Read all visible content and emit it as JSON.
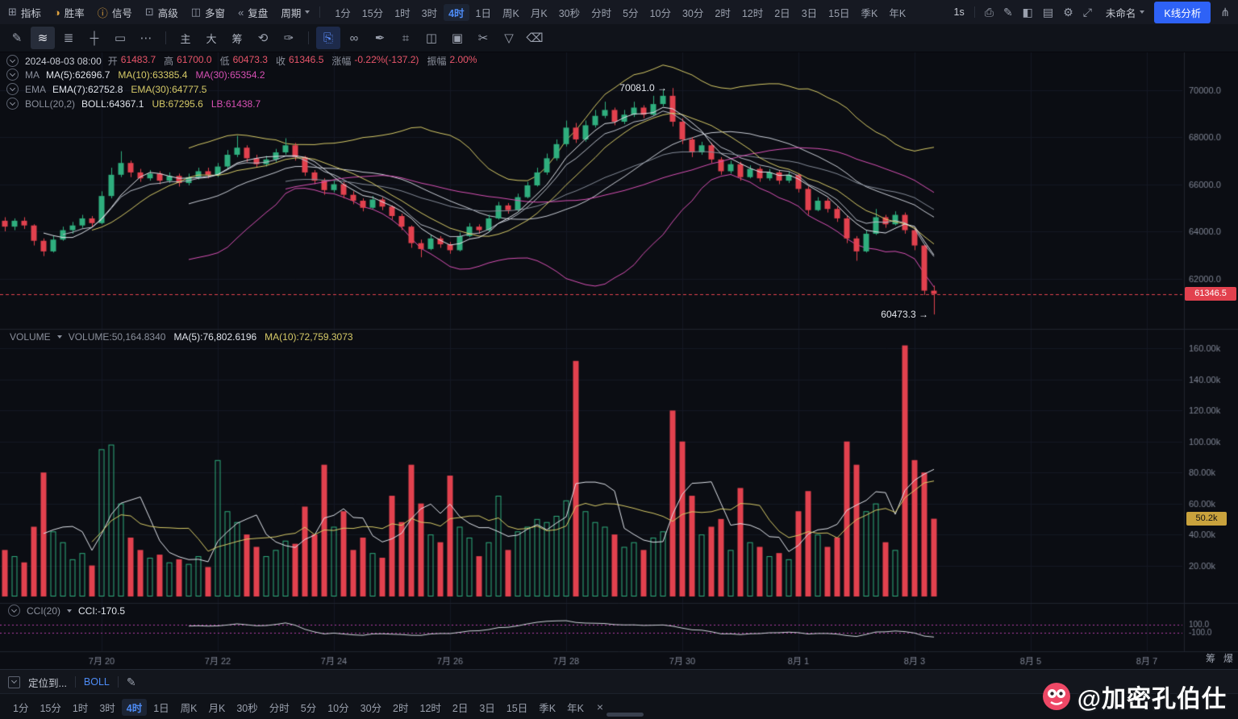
{
  "topbar": {
    "tools": [
      {
        "name": "indicators",
        "icon": "⊞",
        "label": "指标",
        "icon_color": "#8f95a3"
      },
      {
        "name": "win-rate",
        "icon": "◑",
        "label": "胜率",
        "icon_color": "#dfa23f"
      },
      {
        "name": "signal",
        "icon": "ⓘ",
        "label": "信号",
        "icon_color": "#dfa23f"
      },
      {
        "name": "advanced",
        "icon": "⊡",
        "label": "高级",
        "icon_color": "#8f95a3"
      },
      {
        "name": "multi-window",
        "icon": "◫",
        "label": "多窗",
        "icon_color": "#8f95a3"
      },
      {
        "name": "replay",
        "icon": "«",
        "label": "复盘",
        "icon_color": "#8f95a3"
      },
      {
        "name": "period",
        "icon": "",
        "label": "周期",
        "caret": true,
        "icon_color": ""
      }
    ],
    "timeframes": [
      "1分",
      "15分",
      "1时",
      "3时",
      "4时",
      "1日",
      "周K",
      "月K",
      "30秒",
      "分时",
      "5分",
      "10分",
      "30分",
      "2时",
      "12时",
      "2日",
      "3日",
      "15日",
      "季K",
      "年K"
    ],
    "active_timeframe": "4时",
    "right": {
      "interval": "1s",
      "icons": [
        {
          "name": "screenshot-camera-icon",
          "glyph": "⎙"
        },
        {
          "name": "edit-pencil-icon",
          "glyph": "✎"
        },
        {
          "name": "panel-layout-icon",
          "glyph": "◧"
        },
        {
          "name": "image-icon",
          "glyph": "▤"
        },
        {
          "name": "settings-gear-icon",
          "glyph": "⚙"
        },
        {
          "name": "fullscreen-icon",
          "glyph": "⤢"
        }
      ],
      "layout_name": "未命名",
      "kline_button": "K线分析",
      "share_glyph": "⋔"
    }
  },
  "drawbar": {
    "items": [
      {
        "name": "pencil-tool-icon",
        "glyph": "✎"
      },
      {
        "name": "trend-line-tool-icon",
        "glyph": "≋",
        "active": true
      },
      {
        "name": "line-tools-icon",
        "glyph": "≣"
      },
      {
        "name": "crosshair-tool-icon",
        "glyph": "┼"
      },
      {
        "name": "shape-tool-icon",
        "glyph": "▭"
      },
      {
        "name": "more-tools-icon",
        "glyph": "⋯"
      },
      {
        "sep": true
      },
      {
        "name": "main-chart-button",
        "glyph": "主",
        "text": true
      },
      {
        "name": "large-view-button",
        "glyph": "大",
        "text": true
      },
      {
        "name": "chips-button",
        "glyph": "筹",
        "text": true
      },
      {
        "name": "refresh-icon",
        "glyph": "⟲"
      },
      {
        "name": "brush-icon",
        "glyph": "✑"
      },
      {
        "sep": true
      },
      {
        "name": "copy-icon",
        "glyph": "⎘",
        "highlight": true
      },
      {
        "name": "link-icon",
        "glyph": "∞"
      },
      {
        "name": "pen-icon",
        "glyph": "✒"
      },
      {
        "name": "grid-tool-icon",
        "glyph": "⌗"
      },
      {
        "name": "export-icon",
        "glyph": "◫"
      },
      {
        "name": "note-icon",
        "glyph": "▣"
      },
      {
        "name": "scissors-icon",
        "glyph": "✂"
      },
      {
        "name": "filter-icon",
        "glyph": "▽"
      },
      {
        "name": "trash-icon",
        "glyph": "⌫"
      }
    ]
  },
  "legend": {
    "ohlc": {
      "time": "2024-08-03 08:00",
      "value_color": "#e8556a",
      "pairs": [
        {
          "label": "开",
          "value": "61483.7"
        },
        {
          "label": "高",
          "value": "61700.0"
        },
        {
          "label": "低",
          "value": "60473.3"
        },
        {
          "label": "收",
          "value": "61346.5"
        },
        {
          "label": "涨幅",
          "value": "-0.22%(-137.2)"
        },
        {
          "label": "振幅",
          "value": "2.00%"
        }
      ]
    },
    "ma": {
      "name": "MA",
      "items": [
        {
          "text": "MA(5):62696.7",
          "color": "#dfe3ea"
        },
        {
          "text": "MA(10):63385.4",
          "color": "#d6ca67"
        },
        {
          "text": "MA(30):65354.2",
          "color": "#d750b4"
        }
      ]
    },
    "ema": {
      "name": "EMA",
      "items": [
        {
          "text": "EMA(7):62752.8",
          "color": "#dfe3ea"
        },
        {
          "text": "EMA(30):64777.5",
          "color": "#d6ca67"
        }
      ]
    },
    "boll": {
      "name": "BOLL(20,2)",
      "items": [
        {
          "text": "BOLL:64367.1",
          "color": "#dfe3ea"
        },
        {
          "text": "UB:67295.6",
          "color": "#d6ca67"
        },
        {
          "text": "LB:61438.7",
          "color": "#d750b4"
        }
      ]
    },
    "volume": {
      "name": "VOLUME",
      "items": [
        {
          "text": "VOLUME:50,164.8340",
          "color": "#8a8f9b"
        },
        {
          "text": "MA(5):76,802.6196",
          "color": "#dfe3ea"
        },
        {
          "text": "MA(10):72,759.3073",
          "color": "#d6ca67"
        }
      ]
    },
    "cci": {
      "name": "CCI(20)",
      "items": [
        {
          "text": "CCI:-170.5",
          "color": "#dfe3ea"
        }
      ]
    }
  },
  "side_tabs": [
    "筹",
    "爆"
  ],
  "bottombar1": {
    "locate_label": "定位到...",
    "indicator_label": "BOLL",
    "edit_glyph": "✎"
  },
  "bottombar2": {
    "timeframes": [
      "1分",
      "15分",
      "1时",
      "3时",
      "4时",
      "1日",
      "周K",
      "月K",
      "30秒",
      "分时",
      "5分",
      "10分",
      "30分",
      "2时",
      "12时",
      "2日",
      "3日",
      "15日",
      "季K",
      "年K"
    ],
    "active_timeframe": "4时",
    "close_glyph": "×"
  },
  "watermark": {
    "handle": "@加密孔伯仕"
  },
  "colors": {
    "up": "#2fae7e",
    "down": "#e2414e",
    "ma5": "#dfe3ea",
    "ma10": "#d6ca67",
    "ma30": "#d750b4",
    "ema7": "#b9bfca",
    "ema30": "#848b98",
    "boll_mid": "#c9cdd6",
    "boll_ub": "#d6ca67",
    "boll_lb": "#d750b4",
    "vol_ma5": "#dfe3ea",
    "vol_ma10": "#d6ca67",
    "cci": "#cfd3da",
    "cci_guide": "#b13ca6",
    "axis_text": "#7f8594",
    "grid": "#141823",
    "separator": "#20242e",
    "chart_bg": "#0b0d13",
    "last_price_line": "#e2414e"
  },
  "chart_data": {
    "type": "candlestick",
    "timeframe": "4时",
    "last_price": 61346.5,
    "last_price_label": "61346.5",
    "last_volume": 50164.834,
    "last_volume_label": "50.2k",
    "annotations": {
      "peak": {
        "text": "70081.0 →",
        "i": 69,
        "price": 70081.0
      },
      "low": {
        "text": "60473.3 →",
        "i": 96,
        "price": 60473.3
      }
    },
    "price_axis": {
      "min": 60000,
      "max": 70600,
      "ticks": [
        {
          "v": 70000,
          "label": "70000.0"
        },
        {
          "v": 68000,
          "label": "68000.0"
        },
        {
          "v": 66000,
          "label": "66000.0"
        },
        {
          "v": 64000,
          "label": "64000.0"
        },
        {
          "v": 62000,
          "label": "62000.0"
        }
      ]
    },
    "volume_axis": {
      "max": 168000,
      "ticks": [
        {
          "v": 160000,
          "label": "160.00k"
        },
        {
          "v": 140000,
          "label": "140.00k"
        },
        {
          "v": 120000,
          "label": "120.00k"
        },
        {
          "v": 100000,
          "label": "100.00k"
        },
        {
          "v": 80000,
          "label": "80.00k"
        },
        {
          "v": 60000,
          "label": "60.00k"
        },
        {
          "v": 40000,
          "label": "40.00k"
        },
        {
          "v": 20000,
          "label": "20.00k"
        }
      ]
    },
    "cci_axis": {
      "min": -640,
      "max": 520,
      "ticks": [
        {
          "v": 100,
          "label": "100.0"
        },
        {
          "v": -100,
          "label": "-100.0"
        }
      ]
    },
    "x_labels": [
      {
        "i": 10,
        "label": "7月 20"
      },
      {
        "i": 22,
        "label": "7月 22"
      },
      {
        "i": 34,
        "label": "7月 24"
      },
      {
        "i": 46,
        "label": "7月 26"
      },
      {
        "i": 58,
        "label": "7月 28"
      },
      {
        "i": 70,
        "label": "7月 30"
      },
      {
        "i": 82,
        "label": "8月 1"
      },
      {
        "i": 94,
        "label": "8月 3"
      },
      {
        "i": 106,
        "label": "8月 5"
      },
      {
        "i": 118,
        "label": "8月 7"
      }
    ],
    "candles": [
      [
        64450,
        64600,
        64000,
        64200
      ],
      [
        64200,
        64550,
        64050,
        64450
      ],
      [
        64450,
        64600,
        64100,
        64250
      ],
      [
        64250,
        64300,
        63400,
        63600
      ],
      [
        63600,
        63700,
        62950,
        63150
      ],
      [
        63150,
        63800,
        63100,
        63650
      ],
      [
        63650,
        64200,
        63600,
        64050
      ],
      [
        64050,
        64400,
        63900,
        64250
      ],
      [
        64250,
        64700,
        64150,
        64550
      ],
      [
        64550,
        64650,
        64200,
        64350
      ],
      [
        64350,
        65700,
        64300,
        65500
      ],
      [
        65500,
        66700,
        65400,
        66400
      ],
      [
        66400,
        67400,
        66300,
        66900
      ],
      [
        66900,
        67000,
        66300,
        66500
      ],
      [
        66500,
        66650,
        66100,
        66250
      ],
      [
        66250,
        66600,
        66150,
        66450
      ],
      [
        66450,
        66550,
        66000,
        66150
      ],
      [
        66150,
        66500,
        66050,
        66350
      ],
      [
        66350,
        66450,
        65900,
        66050
      ],
      [
        66050,
        66450,
        65950,
        66300
      ],
      [
        66300,
        66700,
        66200,
        66550
      ],
      [
        66550,
        66700,
        66250,
        66400
      ],
      [
        66400,
        66900,
        66300,
        66750
      ],
      [
        66750,
        67450,
        66650,
        67250
      ],
      [
        67250,
        68050,
        67150,
        67550
      ],
      [
        67550,
        67650,
        66950,
        67100
      ],
      [
        67100,
        67250,
        66700,
        66850
      ],
      [
        66850,
        67200,
        66750,
        67050
      ],
      [
        67050,
        67500,
        66950,
        67350
      ],
      [
        67350,
        67950,
        67250,
        67650
      ],
      [
        67650,
        67750,
        67000,
        67150
      ],
      [
        67150,
        67200,
        66350,
        66500
      ],
      [
        66500,
        66600,
        66000,
        66150
      ],
      [
        66150,
        66250,
        65550,
        65750
      ],
      [
        65750,
        66150,
        65650,
        66000
      ],
      [
        66000,
        66100,
        65400,
        65550
      ],
      [
        65550,
        65700,
        65150,
        65300
      ],
      [
        65300,
        65400,
        64850,
        65000
      ],
      [
        65000,
        65500,
        64950,
        65350
      ],
      [
        65350,
        65450,
        64900,
        65050
      ],
      [
        65050,
        65100,
        64500,
        64650
      ],
      [
        64650,
        64750,
        64050,
        64200
      ],
      [
        64200,
        64250,
        63300,
        63500
      ],
      [
        63500,
        63650,
        62900,
        63250
      ],
      [
        63250,
        63850,
        63200,
        63700
      ],
      [
        63700,
        63800,
        63300,
        63450
      ],
      [
        63450,
        63550,
        63050,
        63200
      ],
      [
        63200,
        63950,
        63150,
        63800
      ],
      [
        63800,
        64350,
        63750,
        64200
      ],
      [
        64200,
        64300,
        63900,
        64050
      ],
      [
        64050,
        64700,
        64000,
        64550
      ],
      [
        64550,
        65250,
        64500,
        65100
      ],
      [
        65100,
        65200,
        64750,
        64900
      ],
      [
        64900,
        65600,
        64850,
        65450
      ],
      [
        65450,
        66100,
        65400,
        65950
      ],
      [
        65950,
        66700,
        65900,
        66500
      ],
      [
        66500,
        67300,
        66400,
        67100
      ],
      [
        67100,
        67900,
        67000,
        67700
      ],
      [
        67700,
        68700,
        67600,
        68400
      ],
      [
        68400,
        68600,
        67750,
        67900
      ],
      [
        67900,
        68700,
        67800,
        68500
      ],
      [
        68500,
        69150,
        68400,
        68900
      ],
      [
        68900,
        69500,
        68800,
        69150
      ],
      [
        69150,
        69250,
        68500,
        68650
      ],
      [
        68650,
        69150,
        68550,
        68950
      ],
      [
        68950,
        69500,
        68850,
        69250
      ],
      [
        69250,
        69350,
        68800,
        68950
      ],
      [
        68950,
        69750,
        68900,
        69400
      ],
      [
        69400,
        70000,
        69300,
        69750
      ],
      [
        69750,
        70081,
        68450,
        68650
      ],
      [
        68650,
        68800,
        67700,
        67900
      ],
      [
        67900,
        68000,
        67150,
        67350
      ],
      [
        67350,
        67800,
        67250,
        67650
      ],
      [
        67650,
        67750,
        66900,
        67050
      ],
      [
        67050,
        67150,
        66400,
        66550
      ],
      [
        66550,
        67000,
        66450,
        66850
      ],
      [
        66850,
        66950,
        66150,
        66300
      ],
      [
        66300,
        66800,
        66250,
        66650
      ],
      [
        66650,
        66750,
        66100,
        66250
      ],
      [
        66250,
        66650,
        66150,
        66500
      ],
      [
        66500,
        66600,
        66000,
        66150
      ],
      [
        66150,
        66550,
        66050,
        66400
      ],
      [
        66400,
        66450,
        65650,
        65800
      ],
      [
        65800,
        65900,
        64700,
        64900
      ],
      [
        64900,
        65450,
        64850,
        65300
      ],
      [
        65300,
        65400,
        64800,
        64950
      ],
      [
        64950,
        65050,
        64400,
        64550
      ],
      [
        64550,
        64650,
        63500,
        63700
      ],
      [
        63700,
        63800,
        62750,
        63150
      ],
      [
        63150,
        64050,
        63100,
        63900
      ],
      [
        63900,
        64950,
        63850,
        64600
      ],
      [
        64600,
        64700,
        64150,
        64300
      ],
      [
        64300,
        64850,
        64250,
        64700
      ],
      [
        64700,
        64800,
        63900,
        64050
      ],
      [
        64050,
        64150,
        63200,
        63400
      ],
      [
        63400,
        63450,
        61300,
        61483.7
      ],
      [
        61483.7,
        61700.0,
        60473.3,
        61346.5
      ]
    ],
    "volumes": [
      30000,
      26000,
      22000,
      45000,
      80000,
      42000,
      35000,
      24000,
      28000,
      20000,
      95000,
      98000,
      60000,
      38000,
      30000,
      25000,
      27000,
      22000,
      24000,
      21000,
      26000,
      19000,
      88000,
      55000,
      48000,
      40000,
      32000,
      26000,
      30000,
      36000,
      34000,
      58000,
      40000,
      85000,
      45000,
      55000,
      30000,
      38000,
      28000,
      25000,
      65000,
      48000,
      85000,
      60000,
      40000,
      35000,
      78000,
      45000,
      38000,
      26000,
      35000,
      65000,
      30000,
      42000,
      45000,
      50000,
      48000,
      52000,
      62000,
      152000,
      55000,
      48000,
      45000,
      40000,
      32000,
      35000,
      30000,
      38000,
      42000,
      120000,
      100000,
      65000,
      40000,
      45000,
      50000,
      30000,
      70000,
      35000,
      32000,
      26000,
      28000,
      24000,
      55000,
      68000,
      40000,
      32000,
      38000,
      100000,
      85000,
      55000,
      60000,
      35000,
      30000,
      162000,
      88000,
      80000,
      50164.834
    ]
  }
}
